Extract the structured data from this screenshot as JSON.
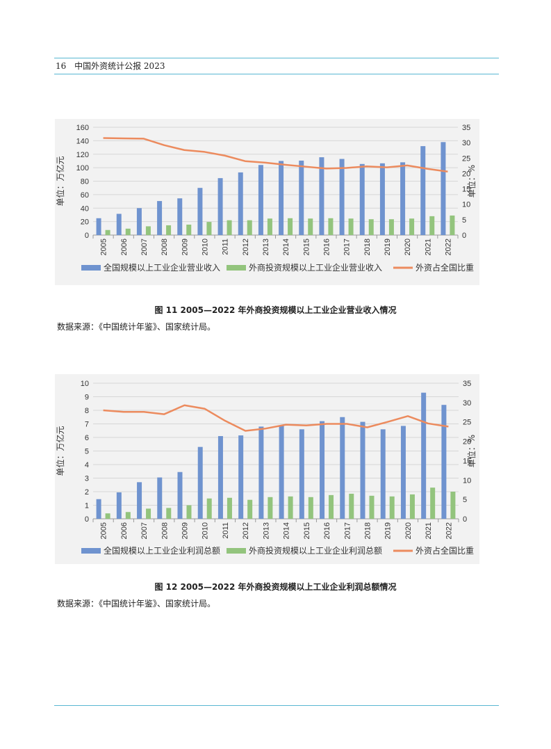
{
  "header": {
    "page_number": "16",
    "title": "中国外资统计公报 2023"
  },
  "figures": [
    {
      "caption": "图 11   2005—2022 年外商投资规模以上工业企业营业收入情况",
      "source": "数据来源：《中国统计年鉴》、国家统计局。",
      "chart_data": {
        "type": "bar",
        "categories": [
          "2005",
          "2006",
          "2007",
          "2008",
          "2009",
          "2010",
          "2011",
          "2012",
          "2013",
          "2014",
          "2015",
          "2016",
          "2017",
          "2018",
          "2019",
          "2020",
          "2021",
          "2022"
        ],
        "ylabel_left": "单位：万亿元",
        "ylabel_right": "单位：%",
        "ylim_left": [
          0,
          160
        ],
        "yticks_left": [
          0,
          20,
          40,
          60,
          80,
          100,
          120,
          140,
          160
        ],
        "ylim_right": [
          0,
          35
        ],
        "yticks_right": [
          0,
          5,
          10,
          15,
          20,
          25,
          30,
          35
        ],
        "legend_position": "bottom",
        "series": [
          {
            "name": "全国规模以上工业企业营业收入",
            "type": "bar",
            "axis": "left",
            "color": "#6f93cf",
            "values": [
              25,
              31.5,
              40,
              50.5,
              54.5,
              70,
              84.5,
              93,
              104,
              110,
              110.5,
              115.5,
              113,
              105.5,
              106.5,
              108,
              132,
              138
            ]
          },
          {
            "name": "外商投资规模以上工业企业营业收入",
            "type": "bar",
            "axis": "left",
            "color": "#93c47d",
            "values": [
              7.5,
              9.5,
              13,
              14.5,
              15.5,
              19.5,
              22,
              22,
              24.5,
              25,
              24.5,
              25,
              24.5,
              23.5,
              23.5,
              24.5,
              28,
              29
            ]
          },
          {
            "name": "外资占全国比重",
            "type": "line",
            "axis": "right",
            "color": "#ec8b5e",
            "values": [
              31.5,
              31.4,
              31.3,
              29.2,
              27.6,
              27.0,
              25.8,
              24.0,
              23.5,
              22.8,
              22.2,
              21.6,
              21.8,
              22.3,
              22.0,
              22.6,
              21.5,
              20.6
            ]
          }
        ]
      }
    },
    {
      "caption": "图 12   2005—2022 年外商投资规模以上工业企业利润总额情况",
      "source": "数据来源：《中国统计年鉴》、国家统计局。",
      "chart_data": {
        "type": "bar",
        "categories": [
          "2005",
          "2006",
          "2007",
          "2008",
          "2009",
          "2010",
          "2011",
          "2012",
          "2013",
          "2014",
          "2015",
          "2016",
          "2017",
          "2018",
          "2019",
          "2020",
          "2021",
          "2022"
        ],
        "ylabel_left": "单位：万亿元",
        "ylabel_right": "单位：%",
        "ylim_left": [
          0,
          10
        ],
        "yticks_left": [
          0,
          1,
          2,
          3,
          4,
          5,
          6,
          7,
          8,
          9,
          10
        ],
        "ylim_right": [
          0,
          35
        ],
        "yticks_right": [
          0,
          5,
          10,
          15,
          20,
          25,
          30,
          35
        ],
        "legend_position": "bottom",
        "series": [
          {
            "name": "全国规模以上工业企业利润总额",
            "type": "bar",
            "axis": "left",
            "color": "#6f93cf",
            "values": [
              1.45,
              1.95,
              2.7,
              3.05,
              3.45,
              5.3,
              6.1,
              6.15,
              6.8,
              6.85,
              6.6,
              7.2,
              7.5,
              7.15,
              6.6,
              6.85,
              9.3,
              8.4
            ]
          },
          {
            "name": "外商投资规模以上工业企业利润总额",
            "type": "bar",
            "axis": "left",
            "color": "#93c47d",
            "values": [
              0.4,
              0.5,
              0.75,
              0.8,
              1.0,
              1.5,
              1.55,
              1.4,
              1.6,
              1.65,
              1.6,
              1.75,
              1.85,
              1.7,
              1.65,
              1.8,
              2.3,
              2.0
            ]
          },
          {
            "name": "外资占全国比重",
            "type": "line",
            "axis": "right",
            "color": "#ec8b5e",
            "values": [
              28.0,
              27.6,
              27.6,
              27.0,
              29.3,
              28.4,
              25.3,
              22.7,
              23.3,
              24.3,
              24.1,
              24.5,
              24.5,
              23.6,
              25.0,
              26.5,
              24.6,
              23.8
            ]
          }
        ]
      }
    }
  ]
}
